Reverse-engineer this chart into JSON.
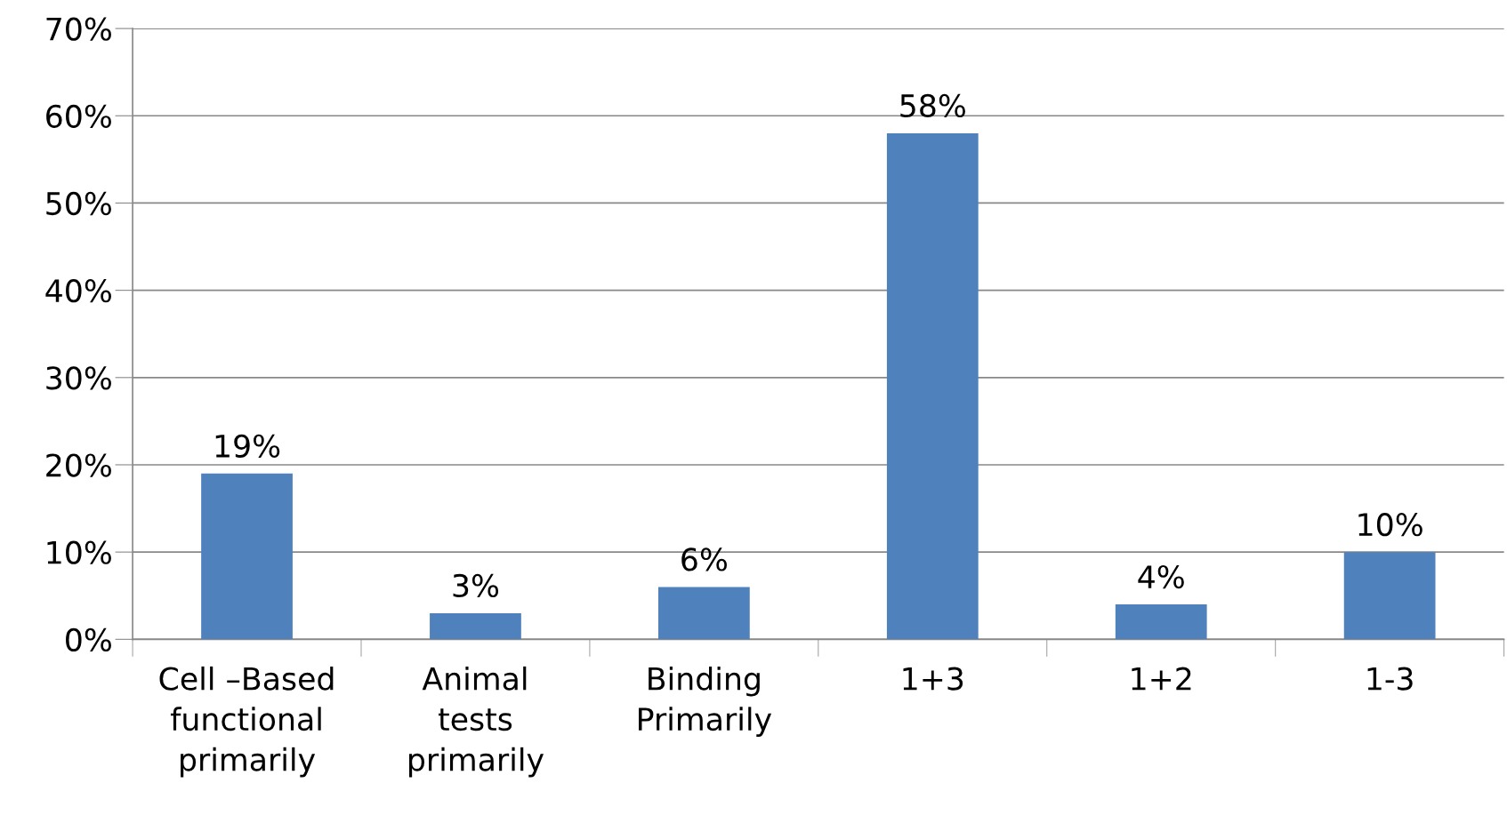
{
  "chart_data": {
    "type": "bar",
    "categories": [
      "Cell –Based\nfunctional\nprimarily",
      "Animal\ntests\nprimarily",
      "Binding\nPrimarily",
      "1+3",
      "1+2",
      "1-3"
    ],
    "values": [
      19,
      3,
      6,
      58,
      4,
      10
    ],
    "value_labels": [
      "19%",
      "3%",
      "6%",
      "58%",
      "4%",
      "10%"
    ],
    "color": "#4f81bd",
    "ylim": [
      0,
      70
    ],
    "yticks": [
      {
        "value": 0,
        "label": "0%"
      },
      {
        "value": 10,
        "label": "10%"
      },
      {
        "value": 20,
        "label": "20%"
      },
      {
        "value": 30,
        "label": "30%"
      },
      {
        "value": 40,
        "label": "40%"
      },
      {
        "value": 50,
        "label": "50%"
      },
      {
        "value": 60,
        "label": "60%"
      },
      {
        "value": 70,
        "label": "70%"
      }
    ],
    "grid": "y",
    "legend": false
  }
}
